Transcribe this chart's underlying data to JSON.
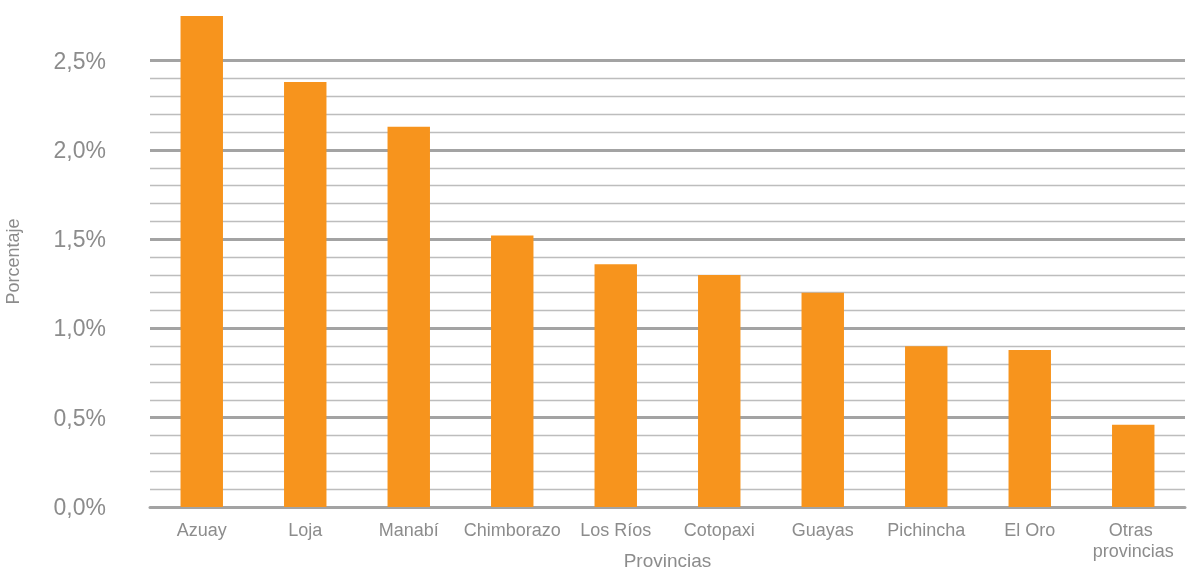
{
  "chart_data": {
    "type": "bar",
    "xlabel": "Provincias",
    "ylabel": "Porcentaje",
    "categories": [
      "Azuay",
      "Loja",
      "Manabí",
      "Chimborazo",
      "Los Ríos",
      "Cotopaxi",
      "Guayas",
      "Pichincha",
      "El Oro",
      "Otras provincias"
    ],
    "values": [
      2.75,
      2.38,
      2.13,
      1.52,
      1.36,
      1.3,
      1.2,
      0.9,
      0.88,
      0.46
    ],
    "color": "#f7941d",
    "ylim": [
      0,
      2.75
    ],
    "yticks": [
      {
        "value": 0,
        "label": "0,0%"
      },
      {
        "value": 0.1,
        "label": null
      },
      {
        "value": 0.2,
        "label": null
      },
      {
        "value": 0.3,
        "label": null
      },
      {
        "value": 0.4,
        "label": null
      },
      {
        "value": 0.5,
        "label": "0,5%"
      },
      {
        "value": 0.6,
        "label": null
      },
      {
        "value": 0.7,
        "label": null
      },
      {
        "value": 0.8,
        "label": null
      },
      {
        "value": 0.9,
        "label": null
      },
      {
        "value": 1,
        "label": "1,0%"
      },
      {
        "value": 1.1,
        "label": null
      },
      {
        "value": 1.2,
        "label": null
      },
      {
        "value": 1.3,
        "label": null
      },
      {
        "value": 1.4,
        "label": null
      },
      {
        "value": 1.5,
        "label": "1,5%"
      },
      {
        "value": 1.6,
        "label": null
      },
      {
        "value": 1.7,
        "label": null
      },
      {
        "value": 1.8,
        "label": null
      },
      {
        "value": 1.9,
        "label": null
      },
      {
        "value": 2,
        "label": "2,0%"
      },
      {
        "value": 2.1,
        "label": null
      },
      {
        "value": 2.2,
        "label": null
      },
      {
        "value": 2.3,
        "label": null
      },
      {
        "value": 2.4,
        "label": null
      },
      {
        "value": 2.5,
        "label": "2,5%"
      }
    ],
    "grid": "y"
  }
}
